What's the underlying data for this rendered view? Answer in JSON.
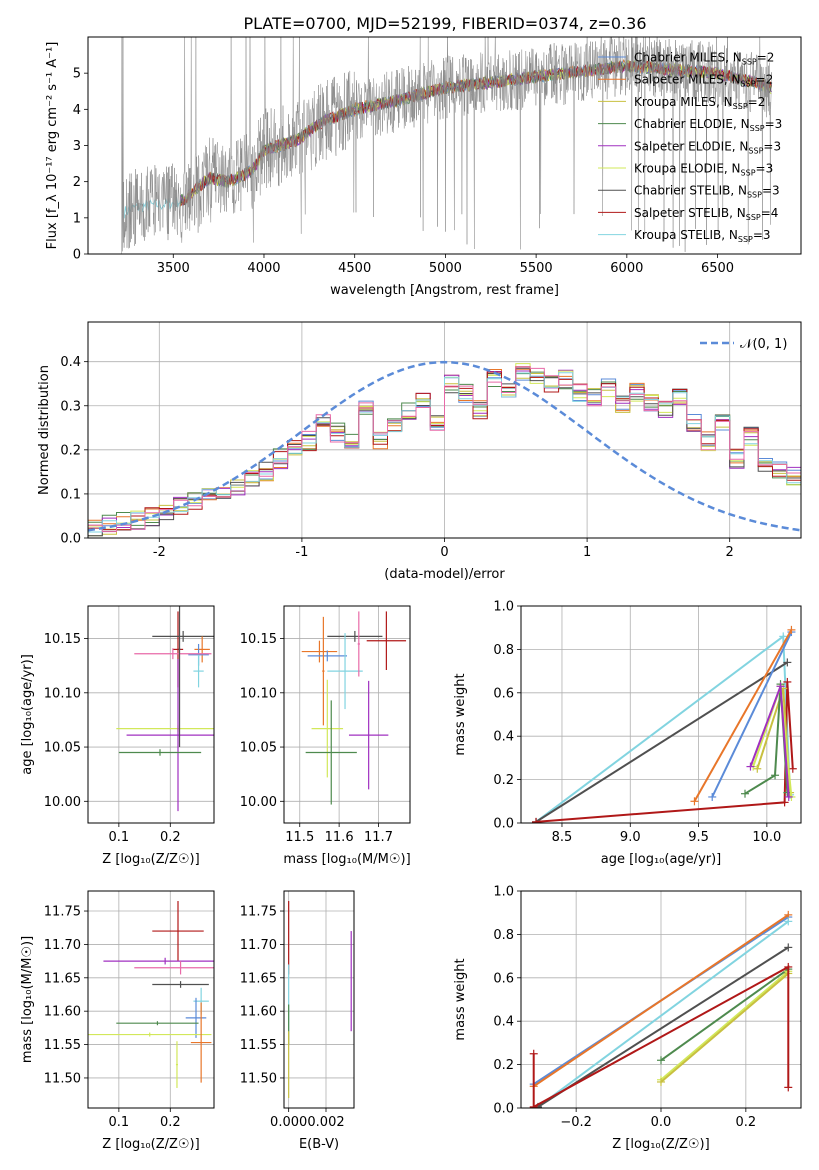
{
  "figure": {
    "title": "PLATE=0700, MJD=52199, FIBERID=0374, z=0.36"
  },
  "colors": {
    "chabrier_miles": "#5b8bd8",
    "salpeter_miles": "#e8762a",
    "kroupa_miles": "#c8c040",
    "chabrier_elodie": "#4e8a4e",
    "salpeter_elodie": "#a030c0",
    "kroupa_elodie": "#d2e85a",
    "chabrier_stelib": "#505050",
    "salpeter_stelib": "#b01818",
    "kroupa_stelib": "#82d4e0",
    "gray_lines": "#888888",
    "grid": "#b0b0b0",
    "pink_model": "#e86aa8",
    "normal_curve": "#5b8bd8"
  },
  "chart_data": [
    {
      "id": "spectrum",
      "type": "line",
      "title": "PLATE=0700, MJD=52199, FIBERID=0374, z=0.36",
      "xlabel": "wavelength [Angstrom, rest frame]",
      "ylabel": "Flux [f_λ 10⁻¹⁷ erg cm⁻² s⁻¹ A⁻¹]",
      "xlim": [
        3030,
        6960
      ],
      "ylim": [
        0,
        6.0
      ],
      "xticks": [
        3500,
        4000,
        4500,
        5000,
        5500,
        6000,
        6500
      ],
      "yticks": [
        0,
        1,
        2,
        3,
        4,
        5
      ],
      "grid": false,
      "legend_position": "right",
      "legend": [
        {
          "text": "Chabrier MILES, N",
          "sub": "SSP",
          "tail": "=2",
          "color": "chabrier_miles"
        },
        {
          "text": "Salpeter MILES, N",
          "sub": "SSP",
          "tail": "=2",
          "color": "salpeter_miles"
        },
        {
          "text": "Kroupa MILES, N",
          "sub": "SSP",
          "tail": "=2",
          "color": "kroupa_miles"
        },
        {
          "text": "Chabrier ELODIE, N",
          "sub": "SSP",
          "tail": "=3",
          "color": "chabrier_elodie"
        },
        {
          "text": "Salpeter ELODIE, N",
          "sub": "SSP",
          "tail": "=3",
          "color": "salpeter_elodie"
        },
        {
          "text": "Kroupa ELODIE, N",
          "sub": "SSP",
          "tail": "=3",
          "color": "kroupa_elodie"
        },
        {
          "text": "Chabrier STELIB, N",
          "sub": "SSP",
          "tail": "=3",
          "color": "chabrier_stelib"
        },
        {
          "text": "Salpeter STELIB, N",
          "sub": "SSP",
          "tail": "=4",
          "color": "salpeter_stelib"
        },
        {
          "text": "Kroupa STELIB, N",
          "sub": "SSP",
          "tail": "=3",
          "color": "kroupa_stelib"
        }
      ],
      "continuum": {
        "x": [
          3200,
          3250,
          3300,
          3400,
          3500,
          3560,
          3650,
          3700,
          3800,
          3900,
          3950,
          4000,
          4100,
          4200,
          4300,
          4400,
          4500,
          4700,
          5000,
          5500,
          6000,
          6500,
          6800
        ],
        "y": [
          1.1,
          1.2,
          1.3,
          1.35,
          1.4,
          1.5,
          1.9,
          2.1,
          2.0,
          2.2,
          2.4,
          2.9,
          3.0,
          3.2,
          3.6,
          3.8,
          4.0,
          4.2,
          4.6,
          4.9,
          5.2,
          5.0,
          4.6
        ]
      },
      "data_start": 3215,
      "model_start_miles": 3540
    },
    {
      "id": "residuals",
      "type": "histogram",
      "xlabel": "(data-model)/error",
      "ylabel": "Normed distribution",
      "xlim": [
        -2.5,
        2.5
      ],
      "ylim": [
        0,
        0.49
      ],
      "xticks": [
        -2,
        -1,
        0,
        1,
        2
      ],
      "yticks": [
        0.0,
        0.1,
        0.2,
        0.3,
        0.4
      ],
      "grid": true,
      "legend_position": "top-right",
      "legend_label": "𝒩(0, 1)",
      "bin_width": 0.1,
      "base_heights": [
        0.02,
        0.03,
        0.04,
        0.04,
        0.05,
        0.06,
        0.07,
        0.08,
        0.09,
        0.1,
        0.12,
        0.14,
        0.15,
        0.18,
        0.2,
        0.22,
        0.26,
        0.24,
        0.22,
        0.3,
        0.22,
        0.26,
        0.29,
        0.31,
        0.26,
        0.35,
        0.33,
        0.29,
        0.36,
        0.33,
        0.38,
        0.37,
        0.35,
        0.36,
        0.33,
        0.32,
        0.34,
        0.3,
        0.33,
        0.31,
        0.29,
        0.32,
        0.26,
        0.22,
        0.26,
        0.18,
        0.23,
        0.17,
        0.15,
        0.14,
        0.12,
        0.11,
        0.13,
        0.09,
        0.08,
        0.07,
        0.06,
        0.05,
        0.05,
        0.04
      ]
    },
    {
      "id": "age_vs_Z",
      "type": "errorbar",
      "xlabel": "Z [log₁₀(Z/Z☉)]",
      "ylabel": "age  [log₁₀(age/yr)]",
      "xlim": [
        0.04,
        0.285
      ],
      "ylim": [
        9.98,
        10.18
      ],
      "xticks": [
        0.1,
        0.2
      ],
      "yticks": [
        10.0,
        10.05,
        10.1,
        10.15
      ],
      "ytick_labels": [
        "10.00",
        "10.05",
        "10.10",
        "10.15"
      ],
      "grid": true,
      "points": [
        {
          "x": 0.215,
          "y": 10.14,
          "xerr": 0.01,
          "yerr": 0.035,
          "color": "salpeter_stelib"
        },
        {
          "x": 0.225,
          "y": 10.152,
          "xerr": 0.06,
          "yerr": 0.005,
          "color": "chabrier_stelib"
        },
        {
          "x": 0.262,
          "y": 10.14,
          "xerr": 0.015,
          "yerr": 0.012,
          "color": "salpeter_miles"
        },
        {
          "x": 0.255,
          "y": 10.135,
          "xerr": 0.02,
          "yerr": 0.01,
          "color": "chabrier_miles"
        },
        {
          "x": 0.205,
          "y": 10.136,
          "xerr": 0.075,
          "yerr": 0.005,
          "color": "pink_model"
        },
        {
          "x": 0.255,
          "y": 10.12,
          "xerr": 0.01,
          "yerr": 0.015,
          "color": "kroupa_stelib"
        },
        {
          "x": 0.215,
          "y": 10.067,
          "xerr": 0.12,
          "yerr": 0.003,
          "color": "kroupa_elodie"
        },
        {
          "x": 0.215,
          "y": 10.061,
          "xerr": 0.1,
          "yerr": 0.07,
          "color": "salpeter_elodie"
        },
        {
          "x": 0.18,
          "y": 10.045,
          "xerr": 0.08,
          "yerr": 0.003,
          "color": "chabrier_elodie"
        },
        {
          "x": 0.218,
          "y": 10.14,
          "xerr": 0.002,
          "yerr": 0.09,
          "color": "chabrier_stelib"
        }
      ]
    },
    {
      "id": "age_vs_mass",
      "type": "errorbar",
      "xlabel": "mass [log₁₀(M/M☉)]",
      "ylabel": "",
      "xlim": [
        11.46,
        11.78
      ],
      "ylim": [
        9.98,
        10.18
      ],
      "xticks": [
        11.5,
        11.6,
        11.7
      ],
      "yticks": [
        10.0,
        10.05,
        10.1,
        10.15
      ],
      "ytick_labels": [
        "10.00",
        "10.05",
        "10.10",
        "10.15"
      ],
      "grid": true,
      "points": [
        {
          "x": 11.72,
          "y": 10.148,
          "xerr": 0.05,
          "yerr": 0.027,
          "color": "salpeter_stelib"
        },
        {
          "x": 11.64,
          "y": 10.152,
          "xerr": 0.07,
          "yerr": 0.005,
          "color": "chabrier_stelib"
        },
        {
          "x": 11.55,
          "y": 10.138,
          "xerr": 0.045,
          "yerr": 0.01,
          "color": "salpeter_miles"
        },
        {
          "x": 11.57,
          "y": 10.134,
          "xerr": 0.05,
          "yerr": 0.005,
          "color": "chabrier_miles"
        },
        {
          "x": 11.615,
          "y": 10.12,
          "xerr": 0.045,
          "yerr": 0.035,
          "color": "kroupa_stelib"
        },
        {
          "x": 11.65,
          "y": 10.145,
          "xerr": 0.003,
          "yerr": 0.03,
          "color": "pink_model"
        },
        {
          "x": 11.57,
          "y": 10.067,
          "xerr": 0.04,
          "yerr": 0.045,
          "color": "kroupa_elodie"
        },
        {
          "x": 11.675,
          "y": 10.061,
          "xerr": 0.05,
          "yerr": 0.05,
          "color": "salpeter_elodie"
        },
        {
          "x": 11.58,
          "y": 10.045,
          "xerr": 0.065,
          "yerr": 0.048,
          "color": "chabrier_elodie"
        },
        {
          "x": 11.56,
          "y": 10.12,
          "xerr": 0.003,
          "yerr": 0.05,
          "color": "salpeter_miles"
        }
      ]
    },
    {
      "id": "massweight_vs_age",
      "type": "line",
      "xlabel": "age  [log₁₀(age/yr)]",
      "ylabel": "mass weight",
      "xlim": [
        8.2,
        10.25
      ],
      "ylim": [
        0,
        1.0
      ],
      "xticks": [
        8.5,
        9.0,
        9.5,
        10.0
      ],
      "xtick_labels": [
        "8.5",
        "9.0",
        "9.5",
        "10.0"
      ],
      "yticks": [
        0.0,
        0.2,
        0.4,
        0.6,
        0.8,
        1.0
      ],
      "grid": true,
      "series": [
        {
          "color": "kroupa_stelib",
          "x": [
            8.31,
            10.12,
            10.17
          ],
          "y": [
            0.005,
            0.86,
            0.13
          ]
        },
        {
          "color": "chabrier_stelib",
          "x": [
            8.31,
            10.15
          ],
          "y": [
            0.005,
            0.74
          ]
        },
        {
          "color": "salpeter_stelib",
          "x": [
            8.31,
            10.13,
            10.15,
            10.19
          ],
          "y": [
            0.005,
            0.095,
            0.65,
            0.25
          ]
        },
        {
          "color": "chabrier_miles",
          "x": [
            9.6,
            10.18
          ],
          "y": [
            0.12,
            0.88
          ]
        },
        {
          "color": "salpeter_miles",
          "x": [
            9.47,
            10.18
          ],
          "y": [
            0.1,
            0.89
          ]
        },
        {
          "color": "kroupa_miles",
          "x": [
            9.93,
            10.12,
            10.17
          ],
          "y": [
            0.25,
            0.62,
            0.14
          ]
        },
        {
          "color": "chabrier_elodie",
          "x": [
            9.84,
            10.06,
            10.1,
            10.15
          ],
          "y": [
            0.135,
            0.22,
            0.64,
            0.14
          ]
        },
        {
          "color": "kroupa_elodie",
          "x": [
            9.9,
            10.1,
            10.18
          ],
          "y": [
            0.26,
            0.63,
            0.12
          ]
        },
        {
          "color": "salpeter_elodie",
          "x": [
            9.88,
            10.1,
            10.16
          ],
          "y": [
            0.26,
            0.63,
            0.12
          ]
        }
      ]
    },
    {
      "id": "mass_vs_Z",
      "type": "errorbar",
      "xlabel": "Z [log₁₀(Z/Z☉)]",
      "ylabel": "mass [log₁₀(M/M☉)]",
      "xlim": [
        0.04,
        0.285
      ],
      "ylim": [
        11.455,
        11.78
      ],
      "xticks": [
        0.1,
        0.2
      ],
      "yticks": [
        11.5,
        11.55,
        11.6,
        11.65,
        11.7,
        11.75
      ],
      "ytick_labels": [
        "11.50",
        "11.55",
        "11.60",
        "11.65",
        "11.70",
        "11.75"
      ],
      "grid": true,
      "points": [
        {
          "x": 0.215,
          "y": 11.72,
          "xerr": 0.05,
          "yerr": 0.045,
          "color": "salpeter_stelib"
        },
        {
          "x": 0.19,
          "y": 11.675,
          "xerr": 0.12,
          "yerr": 0.005,
          "color": "salpeter_elodie"
        },
        {
          "x": 0.22,
          "y": 11.665,
          "xerr": 0.09,
          "yerr": 0.01,
          "color": "pink_model"
        },
        {
          "x": 0.22,
          "y": 11.64,
          "xerr": 0.055,
          "yerr": 0.005,
          "color": "chabrier_stelib"
        },
        {
          "x": 0.26,
          "y": 11.615,
          "xerr": 0.015,
          "yerr": 0.02,
          "color": "kroupa_stelib"
        },
        {
          "x": 0.25,
          "y": 11.59,
          "xerr": 0.02,
          "yerr": 0.03,
          "color": "chabrier_miles"
        },
        {
          "x": 0.175,
          "y": 11.582,
          "xerr": 0.08,
          "yerr": 0.003,
          "color": "chabrier_elodie"
        },
        {
          "x": 0.16,
          "y": 11.565,
          "xerr": 0.12,
          "yerr": 0.003,
          "color": "kroupa_elodie"
        },
        {
          "x": 0.26,
          "y": 11.553,
          "xerr": 0.02,
          "yerr": 0.06,
          "color": "salpeter_miles"
        },
        {
          "x": 0.213,
          "y": 11.52,
          "xerr": 0.002,
          "yerr": 0.035,
          "color": "kroupa_elodie"
        }
      ]
    },
    {
      "id": "mass_vs_EBV",
      "type": "errorbar",
      "xlabel": "E(B-V)",
      "ylabel": "",
      "xlim": [
        -0.00025,
        0.0035
      ],
      "ylim": [
        11.455,
        11.78
      ],
      "xticks": [
        0.0,
        0.002
      ],
      "xtick_labels": [
        "0.000",
        "0.002"
      ],
      "yticks": [
        11.5,
        11.55,
        11.6,
        11.65,
        11.7,
        11.75
      ],
      "ytick_labels": [
        "11.50",
        "11.55",
        "11.60",
        "11.65",
        "11.70",
        "11.75"
      ],
      "grid": true,
      "points": [
        {
          "x": 0.0,
          "y": 11.71,
          "xerr": 0.0,
          "yerr": 0.055,
          "color": "salpeter_stelib"
        },
        {
          "x": 0.0,
          "y": 11.62,
          "xerr": 0.0,
          "yerr": 0.05,
          "color": "kroupa_stelib"
        },
        {
          "x": 0.0,
          "y": 11.58,
          "xerr": 0.0,
          "yerr": 0.03,
          "color": "chabrier_elodie"
        },
        {
          "x": 0.0,
          "y": 11.52,
          "xerr": 0.0,
          "yerr": 0.05,
          "color": "kroupa_miles"
        },
        {
          "x": 0.00335,
          "y": 11.645,
          "xerr": 0.0,
          "yerr": 0.075,
          "color": "salpeter_elodie"
        }
      ]
    },
    {
      "id": "massweight_vs_Z",
      "type": "line",
      "xlabel": "Z [log₁₀(Z/Z☉)]",
      "ylabel": "mass weight",
      "xlim": [
        -0.33,
        0.33
      ],
      "ylim": [
        0,
        1.0
      ],
      "xticks": [
        -0.2,
        0.0,
        0.2
      ],
      "xtick_labels": [
        "−0.2",
        "0.0",
        "0.2"
      ],
      "yticks": [
        0.0,
        0.2,
        0.4,
        0.6,
        0.8,
        1.0
      ],
      "grid": true,
      "series": [
        {
          "color": "chabrier_miles",
          "x": [
            -0.3,
            0.3
          ],
          "y": [
            0.11,
            0.88
          ]
        },
        {
          "color": "salpeter_miles",
          "x": [
            -0.3,
            0.3
          ],
          "y": [
            0.1,
            0.89
          ]
        },
        {
          "color": "kroupa_stelib",
          "x": [
            -0.29,
            0.3
          ],
          "y": [
            0.005,
            0.86
          ]
        },
        {
          "color": "chabrier_stelib",
          "x": [
            -0.29,
            0.3
          ],
          "y": [
            0.005,
            0.74
          ]
        },
        {
          "color": "chabrier_elodie",
          "x": [
            0.0,
            0.3
          ],
          "y": [
            0.22,
            0.64
          ]
        },
        {
          "color": "kroupa_elodie",
          "x": [
            0.0,
            0.3
          ],
          "y": [
            0.13,
            0.63
          ]
        },
        {
          "color": "kroupa_miles",
          "x": [
            0.0,
            0.3
          ],
          "y": [
            0.12,
            0.62
          ]
        },
        {
          "color": "salpeter_stelib",
          "x": [
            -0.3,
            -0.3,
            0.3,
            0.3
          ],
          "y": [
            0.25,
            0.005,
            0.65,
            0.095
          ]
        }
      ]
    }
  ]
}
